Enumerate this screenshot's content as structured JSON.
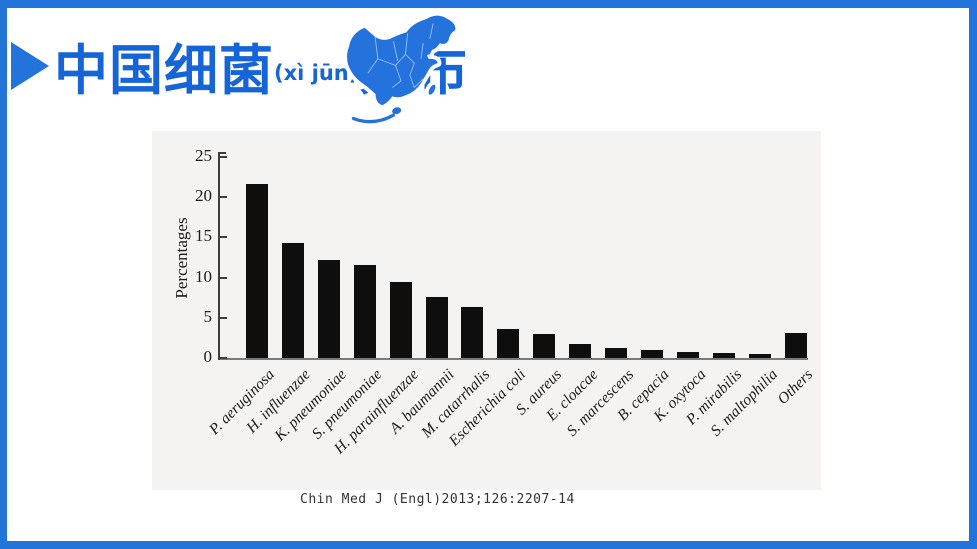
{
  "slide": {
    "title": {
      "main": "中国细菌",
      "pinyin": "(xì jūn)",
      "rest": "分布"
    },
    "title_color": "#1565d8",
    "accent_color": "#2273da",
    "citation": "Chin Med J (Engl)2013;126:2207-14",
    "decorations": {
      "bullet_icon": "right-pointing-triangle",
      "map_icon": "china-map"
    }
  },
  "chart_data": {
    "type": "bar",
    "title": "",
    "xlabel": "",
    "ylabel": "Percentages",
    "ylim": [
      0,
      25
    ],
    "yticks": [
      0,
      5,
      10,
      15,
      20,
      25
    ],
    "grid": false,
    "bar_color": "#0e0e0e",
    "panel_background": "#f4f3f2",
    "categories": [
      "P. aeruginosa",
      "H. influenzae",
      "K. pneumoniae",
      "S. pneumoniae",
      "H. parainfluenzae",
      "A. baumannii",
      "M. catarrhalis",
      "Escherichia coli",
      "S. aureus",
      "E. cloacae",
      "S. marcescens",
      "B. cepacia",
      "K. oxytoca",
      "P. mirabilis",
      "S. maltophilia",
      "Others"
    ],
    "values": [
      21.6,
      14.3,
      12.2,
      11.6,
      9.5,
      7.6,
      6.4,
      3.6,
      3.0,
      1.8,
      1.3,
      1.0,
      0.8,
      0.6,
      0.5,
      3.1
    ]
  }
}
